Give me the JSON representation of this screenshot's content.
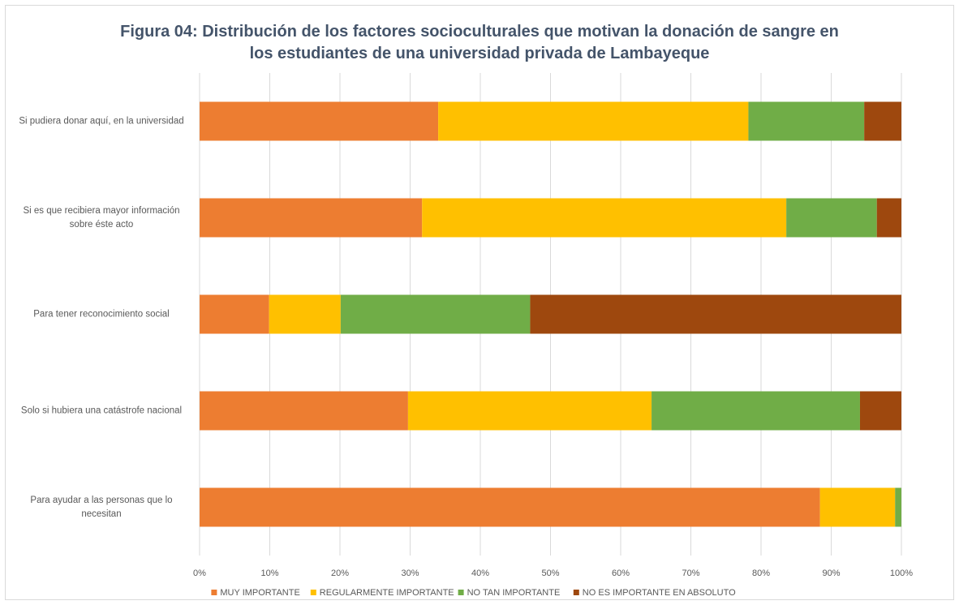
{
  "chart_data": {
    "type": "stacked_barh",
    "title": "Figura 04: Distribución de los factores socioculturales que motivan la donación de sangre en los estudiantes de una universidad privada de Lambayeque",
    "categories": [
      "Si pudiera donar aquí, en la universidad",
      "Si es que recibiera mayor información sobre éste acto",
      "Para tener reconocimiento social",
      "Solo si hubiera una catástrofe nacional",
      "Para ayudar a las personas que lo necesitan"
    ],
    "series": [
      {
        "name": "MUY IMPORTANTE",
        "color": "#ed7d31",
        "values": [
          34.0,
          31.7,
          9.9,
          29.7,
          88.4
        ]
      },
      {
        "name": "REGULARMENTE IMPORTANTE",
        "color": "#ffc000",
        "values": [
          44.2,
          51.9,
          10.2,
          34.7,
          10.7
        ]
      },
      {
        "name": "NO TAN IMPORTANTE",
        "color": "#70ad47",
        "values": [
          16.5,
          12.9,
          27.0,
          29.7,
          0.9
        ]
      },
      {
        "name": "NO ES IMPORTANTE EN ABSOLUTO",
        "color": "#9e480e",
        "values": [
          5.3,
          3.5,
          52.9,
          5.9,
          0
        ]
      }
    ],
    "xlim": [
      0,
      100
    ],
    "xticks": [
      {
        "value": 0,
        "label": "0%"
      },
      {
        "value": 10,
        "label": "10%"
      },
      {
        "value": 20,
        "label": "20%"
      },
      {
        "value": 30,
        "label": "30%"
      },
      {
        "value": 40,
        "label": "40%"
      },
      {
        "value": 50,
        "label": "50%"
      },
      {
        "value": 60,
        "label": "60%"
      },
      {
        "value": 70,
        "label": "70%"
      },
      {
        "value": 80,
        "label": "80%"
      },
      {
        "value": 90,
        "label": "90%"
      },
      {
        "value": 100,
        "label": "100%"
      }
    ],
    "grid": true,
    "legend": "bottom"
  }
}
